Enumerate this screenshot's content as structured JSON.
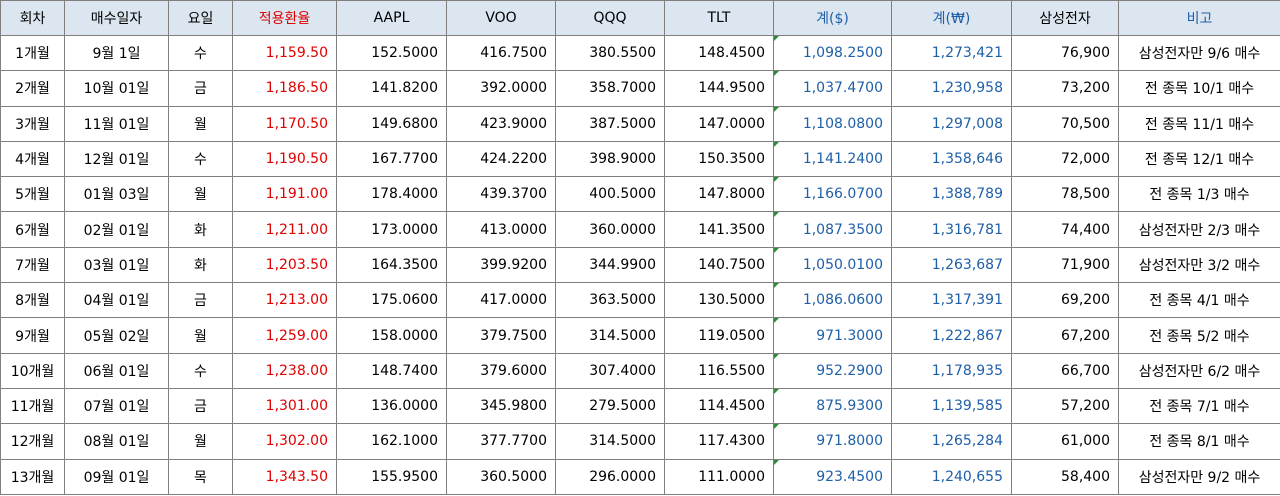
{
  "headers": [
    "회차",
    "매수일자",
    "요일",
    "적용환율",
    "AAPL",
    "VOO",
    "QQQ",
    "TLT",
    "계($)",
    "계(₩)",
    "삼성전자",
    "비고"
  ],
  "rows": [
    [
      "1개월",
      "9월 1일",
      "수",
      "1,159.50",
      "152.5000",
      "416.7500",
      "380.5500",
      "148.4500",
      "1,098.2500",
      "1,273,421",
      "76,900",
      "삼성전자만 9/6 매수"
    ],
    [
      "2개월",
      "10월 01일",
      "금",
      "1,186.50",
      "141.8200",
      "392.0000",
      "358.7000",
      "144.9500",
      "1,037.4700",
      "1,230,958",
      "73,200",
      "전 종목 10/1 매수"
    ],
    [
      "3개월",
      "11월 01일",
      "월",
      "1,170.50",
      "149.6800",
      "423.9000",
      "387.5000",
      "147.0000",
      "1,108.0800",
      "1,297,008",
      "70,500",
      "전 종목 11/1 매수"
    ],
    [
      "4개월",
      "12월 01일",
      "수",
      "1,190.50",
      "167.7700",
      "424.2200",
      "398.9000",
      "150.3500",
      "1,141.2400",
      "1,358,646",
      "72,000",
      "전 종목 12/1 매수"
    ],
    [
      "5개월",
      "01월 03일",
      "월",
      "1,191.00",
      "178.4000",
      "439.3700",
      "400.5000",
      "147.8000",
      "1,166.0700",
      "1,388,789",
      "78,500",
      "전 종목 1/3 매수"
    ],
    [
      "6개월",
      "02월 01일",
      "화",
      "1,211.00",
      "173.0000",
      "413.0000",
      "360.0000",
      "141.3500",
      "1,087.3500",
      "1,316,781",
      "74,400",
      "삼성전자만 2/3 매수"
    ],
    [
      "7개월",
      "03월 01일",
      "화",
      "1,203.50",
      "164.3500",
      "399.9200",
      "344.9900",
      "140.7500",
      "1,050.0100",
      "1,263,687",
      "71,900",
      "삼성전자만 3/2 매수"
    ],
    [
      "8개월",
      "04월 01일",
      "금",
      "1,213.00",
      "175.0600",
      "417.0000",
      "363.5000",
      "130.5000",
      "1,086.0600",
      "1,317,391",
      "69,200",
      "전 종목 4/1 매수"
    ],
    [
      "9개월",
      "05월 02일",
      "월",
      "1,259.00",
      "158.0000",
      "379.7500",
      "314.5000",
      "119.0500",
      "971.3000",
      "1,222,867",
      "67,200",
      "전 종목 5/2 매수"
    ],
    [
      "10개월",
      "06월 01일",
      "수",
      "1,238.00",
      "148.7400",
      "379.6000",
      "307.4000",
      "116.5500",
      "952.2900",
      "1,178,935",
      "66,700",
      "삼성전자만 6/2 매수"
    ],
    [
      "11개월",
      "07월 01일",
      "금",
      "1,301.00",
      "136.0000",
      "345.9800",
      "279.5000",
      "114.4500",
      "875.9300",
      "1,139,585",
      "57,200",
      "전 종목 7/1 매수"
    ],
    [
      "12개월",
      "08월 01일",
      "월",
      "1,302.00",
      "162.1000",
      "377.7700",
      "314.5000",
      "117.4300",
      "971.8000",
      "1,265,284",
      "61,000",
      "전 종목 8/1 매수"
    ],
    [
      "13개월",
      "09월 01일",
      "목",
      "1,343.50",
      "155.9500",
      "360.5000",
      "296.0000",
      "111.0000",
      "923.4500",
      "1,240,655",
      "58,400",
      "삼성전자만 9/2 매수"
    ]
  ],
  "colors": {
    "header_bg": "#dce6f1",
    "exchange_rate": "#e00000",
    "totals": "#1f5fa8",
    "note_header": "#1f5fa8",
    "cell_marker": "#2e8b3a"
  }
}
